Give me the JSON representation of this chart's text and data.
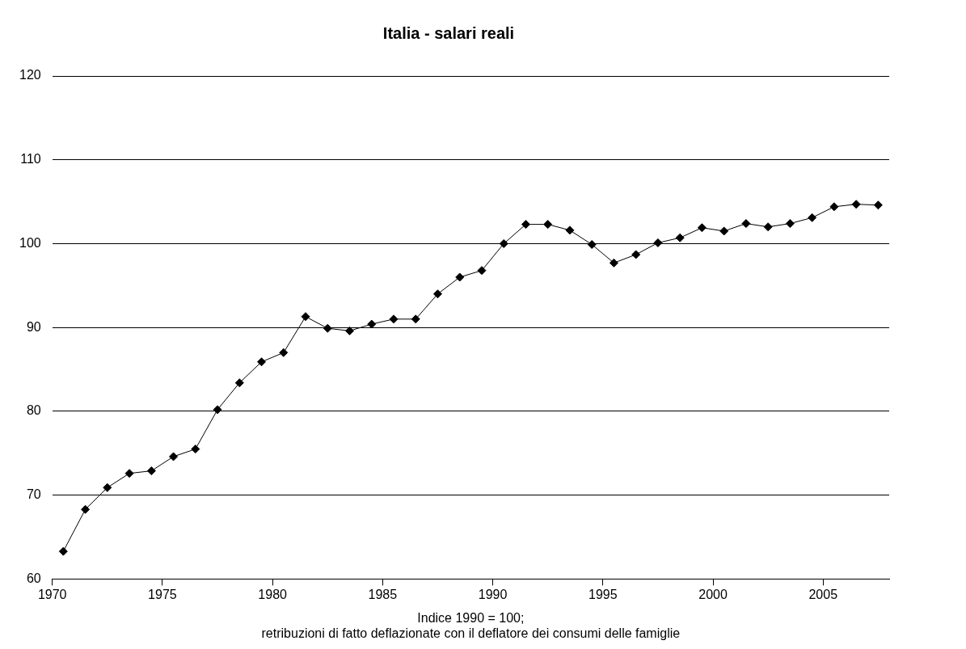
{
  "chart_data": {
    "type": "line",
    "title": "Italia - salari reali",
    "xlabel": "Indice 1990 = 100;\nretribuzioni di fatto deflazionate con il deflatore dei consumi delle famiglie",
    "x": [
      1970.5,
      1971.5,
      1972.5,
      1973.5,
      1974.5,
      1975.5,
      1976.5,
      1977.5,
      1978.5,
      1979.5,
      1980.5,
      1981.5,
      1982.5,
      1983.5,
      1984.5,
      1985.5,
      1986.5,
      1987.5,
      1988.5,
      1989.5,
      1990.5,
      1991.5,
      1992.5,
      1993.5,
      1994.5,
      1995.5,
      1996.5,
      1997.5,
      1998.5,
      1999.5,
      2000.5,
      2001.5,
      2002.5,
      2003.5,
      2004.5,
      2005.5,
      2006.5,
      2007.5
    ],
    "series": [
      {
        "color": "#000000",
        "values": [
          63.3,
          68.3,
          70.9,
          72.6,
          72.9,
          74.6,
          75.5,
          80.2,
          83.4,
          85.9,
          87.0,
          91.3,
          89.9,
          89.6,
          90.4,
          91.0,
          91.0,
          94.0,
          96.0,
          96.8,
          100.0,
          102.3,
          102.3,
          101.6,
          99.9,
          97.7,
          98.7,
          100.1,
          100.7,
          101.9,
          101.5,
          102.4,
          102.0,
          102.4,
          103.1,
          104.4,
          104.7,
          104.6
        ]
      }
    ],
    "xlim": [
      1970,
      2008
    ],
    "xticks": [
      1970,
      1975,
      1980,
      1985,
      1990,
      1995,
      2000,
      2005
    ],
    "ylim": [
      60,
      120
    ],
    "yticks": [
      60,
      70,
      80,
      90,
      100,
      110,
      120
    ],
    "grid": "y",
    "marker": "diamond",
    "line_style": "solid"
  }
}
